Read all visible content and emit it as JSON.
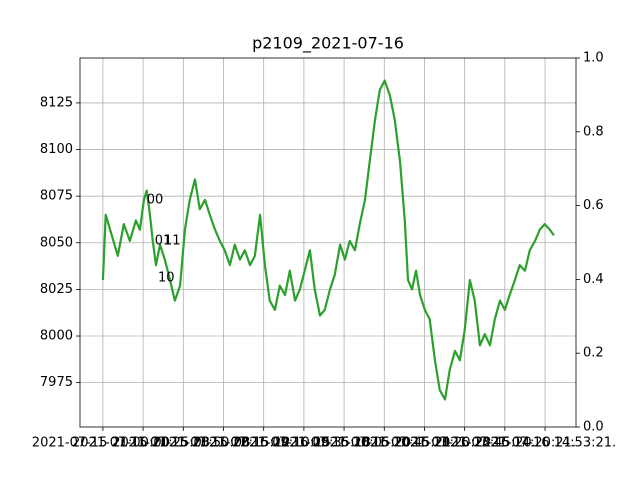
{
  "chart_data": {
    "type": "line",
    "title": "p2109_2021-07-16",
    "color": "#2ca02c",
    "grid": true,
    "x": [
      0,
      0.07,
      0.22,
      0.37,
      0.52,
      0.67,
      0.82,
      0.92,
      1.02,
      1.09,
      1.17,
      1.24,
      1.32,
      1.42,
      1.54,
      1.67,
      1.79,
      1.92,
      2.04,
      2.16,
      2.29,
      2.41,
      2.54,
      2.66,
      2.79,
      2.91,
      3.03,
      3.16,
      3.28,
      3.41,
      3.53,
      3.66,
      3.78,
      3.91,
      4.03,
      4.15,
      4.28,
      4.4,
      4.53,
      4.65,
      4.78,
      4.9,
      5.02,
      5.15,
      5.27,
      5.4,
      5.52,
      5.65,
      5.77,
      5.9,
      6.02,
      6.14,
      6.27,
      6.39,
      6.52,
      6.64,
      6.77,
      6.89,
      7.01,
      7.14,
      7.26,
      7.39,
      7.51,
      7.59,
      7.69,
      7.79,
      7.89,
      8.01,
      8.13,
      8.26,
      8.38,
      8.51,
      8.63,
      8.76,
      8.88,
      9.0,
      9.13,
      9.25,
      9.38,
      9.5,
      9.63,
      9.75,
      9.88,
      10.0,
      10.12,
      10.25,
      10.37,
      10.5,
      10.62,
      10.75,
      10.87,
      10.99,
      11.12,
      11.22
    ],
    "values": [
      8030,
      8065,
      8054,
      8043,
      8060,
      8051,
      8062,
      8057,
      8073,
      8078,
      8065,
      8051,
      8038,
      8049,
      8041,
      8030,
      8019,
      8027,
      8057,
      8073,
      8084,
      8068,
      8073,
      8065,
      8057,
      8051,
      8046,
      8038,
      8049,
      8041,
      8046,
      8038,
      8043,
      8065,
      8038,
      8019,
      8014,
      8027,
      8022,
      8035,
      8019,
      8025,
      8035,
      8046,
      8025,
      8011,
      8014,
      8025,
      8033,
      8049,
      8041,
      8051,
      8046,
      8060,
      8073,
      8094,
      8116,
      8132,
      8137,
      8129,
      8116,
      8094,
      8062,
      8030,
      8025,
      8035,
      8022,
      8014,
      8009,
      7987,
      7971,
      7966,
      7982,
      7992,
      7987,
      8003,
      8030,
      8019,
      7995,
      8001,
      7995,
      8009,
      8019,
      8014,
      8022,
      8030,
      8038,
      8035,
      8046,
      8051,
      8057,
      8060,
      8057,
      8054
    ],
    "xlim": [
      -0.57,
      11.77
    ],
    "xticks": [
      {
        "value": 0,
        "label": "2021-07-15 21:00:00."
      },
      {
        "value": 1,
        "label": "2021-07-15 21:25:03."
      },
      {
        "value": 2,
        "label": "2021-07-15 21:50:08."
      },
      {
        "value": 3,
        "label": "2021-07-15 22:15:12."
      },
      {
        "value": 4,
        "label": "2021-07-16 09:10:15."
      },
      {
        "value": 5,
        "label": "2021-07-16 09:35:18."
      },
      {
        "value": 6,
        "label": "2021-07-16 10:05:20."
      },
      {
        "value": 7,
        "label": "2021-07-16 10:45:21."
      },
      {
        "value": 8,
        "label": "2021-07-16 11:20:22."
      },
      {
        "value": 9,
        "label": "2021-07-16 13:45:20."
      },
      {
        "value": 10,
        "label": "2021-07-16 14:20:21."
      },
      {
        "value": 11,
        "label": "2021-07-16 14:53:21."
      }
    ],
    "ylim": [
      7951.2,
      8149.1
    ],
    "yticks": [
      7975,
      8000,
      8025,
      8050,
      8075,
      8100,
      8125
    ],
    "y2lim": [
      0,
      1
    ],
    "y2ticks": [
      {
        "value": 0,
        "label": "0.0"
      },
      {
        "value": 0.2,
        "label": "0.2"
      },
      {
        "value": 0.4,
        "label": "0.4"
      },
      {
        "value": 0.6,
        "label": "0.6"
      },
      {
        "value": 0.8,
        "label": "0.8"
      },
      {
        "value": 1,
        "label": "1.0"
      }
    ],
    "annotations": [
      {
        "text": "00",
        "x": 1.09,
        "y": 8073
      },
      {
        "text": "01",
        "x": 1.29,
        "y": 8051
      },
      {
        "text": "11",
        "x": 1.52,
        "y": 8051
      },
      {
        "text": "10",
        "x": 1.37,
        "y": 8031
      }
    ]
  }
}
